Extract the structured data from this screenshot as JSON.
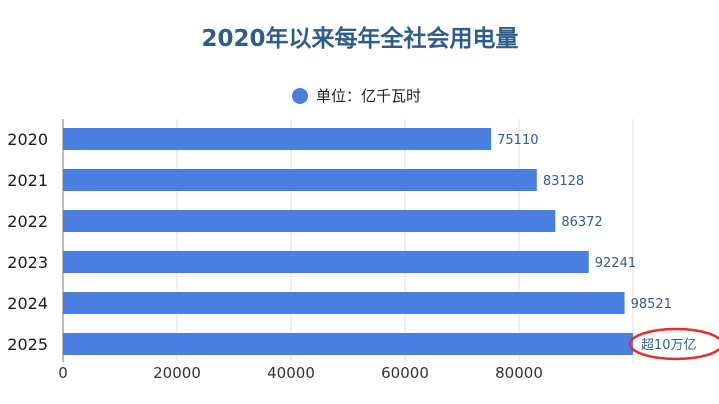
{
  "chart_data": {
    "type": "bar",
    "orientation": "horizontal",
    "title": "2020年以来每年全社会用电量",
    "legend": {
      "label": "单位：亿千瓦时",
      "position": "top-center"
    },
    "categories": [
      "2020",
      "2021",
      "2022",
      "2023",
      "2024",
      "2025"
    ],
    "series": [
      {
        "name": "单位：亿千瓦时",
        "values": [
          75110,
          83128,
          86372,
          92241,
          98521,
          100000
        ],
        "data_labels": [
          "75110",
          "83128",
          "86372",
          "92241",
          "98521",
          "超10万亿"
        ]
      }
    ],
    "xlim": [
      0,
      100000
    ],
    "xticks": [
      0,
      20000,
      40000,
      60000,
      80000
    ],
    "xtick_labels": [
      "0",
      "20000",
      "40000",
      "60000",
      "80000"
    ],
    "grid": true,
    "annotation": {
      "text": "超10万亿",
      "category": "2025",
      "style": "red ellipse"
    },
    "colors": {
      "bar": "#4a7fe0",
      "title": "#2f5d8a",
      "legend_marker": "#4a7fe0",
      "annotation": "#e03030"
    }
  }
}
